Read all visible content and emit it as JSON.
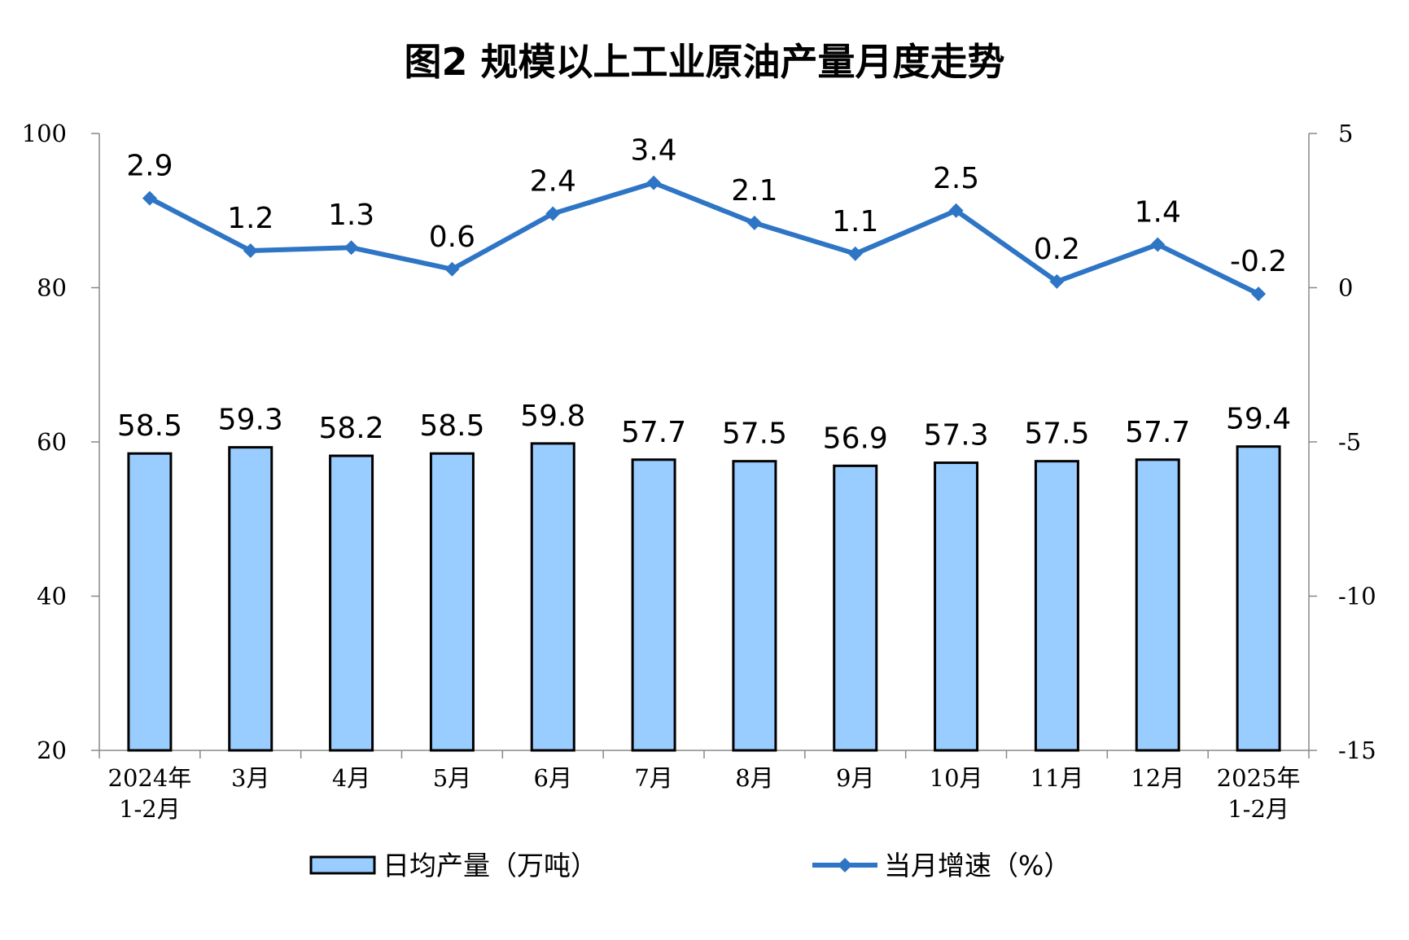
{
  "chart_data": {
    "type": "bar+line",
    "title": "图2  规模以上工业原油产量月度走势",
    "categories": [
      [
        "2024年",
        "1-2月"
      ],
      [
        "3月"
      ],
      [
        "4月"
      ],
      [
        "5月"
      ],
      [
        "6月"
      ],
      [
        "7月"
      ],
      [
        "8月"
      ],
      [
        "9月"
      ],
      [
        "10月"
      ],
      [
        "11月"
      ],
      [
        "12月"
      ],
      [
        "2025年",
        "1-2月"
      ]
    ],
    "series": [
      {
        "name": "日均产量（万吨）",
        "type": "bar",
        "axis": "left",
        "color": "#99ccff",
        "values": [
          58.5,
          59.3,
          58.2,
          58.5,
          59.8,
          57.7,
          57.5,
          56.9,
          57.3,
          57.5,
          57.7,
          59.4
        ]
      },
      {
        "name": "当月增速（%）",
        "type": "line",
        "axis": "right",
        "color": "#2e75c6",
        "values": [
          2.9,
          1.2,
          1.3,
          0.6,
          2.4,
          3.4,
          2.1,
          1.1,
          2.5,
          0.2,
          1.4,
          -0.2
        ]
      }
    ],
    "y_left": {
      "ylim": [
        20,
        100
      ],
      "ticks": [
        "100",
        "80",
        "60",
        "40",
        "20"
      ]
    },
    "y_right": {
      "ylim": [
        -15,
        5
      ],
      "ticks": [
        "5",
        "0",
        "-5",
        "-10",
        "-15"
      ]
    },
    "grid": false,
    "legend": "bottom"
  }
}
